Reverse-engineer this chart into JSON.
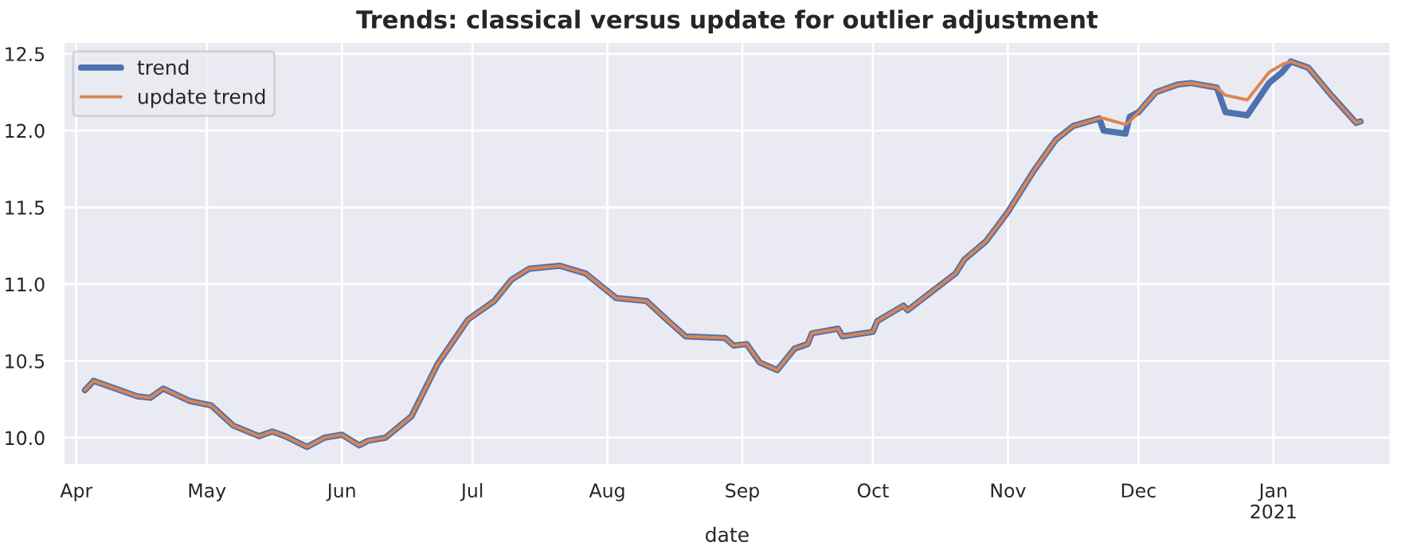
{
  "chart_data": {
    "type": "line",
    "title": "Trends: classical versus update for outlier adjustment",
    "xlabel": "date",
    "x": [
      "2020-04-03",
      "2020-04-05",
      "2020-04-07",
      "2020-04-11",
      "2020-04-15",
      "2020-04-18",
      "2020-04-21",
      "2020-04-27",
      "2020-05-02",
      "2020-05-07",
      "2020-05-13",
      "2020-05-16",
      "2020-05-19",
      "2020-05-24",
      "2020-05-28",
      "2020-06-01",
      "2020-06-05",
      "2020-06-07",
      "2020-06-11",
      "2020-06-17",
      "2020-06-23",
      "2020-06-30",
      "2020-07-06",
      "2020-07-10",
      "2020-07-14",
      "2020-07-21",
      "2020-07-27",
      "2020-08-03",
      "2020-08-10",
      "2020-08-15",
      "2020-08-19",
      "2020-08-28",
      "2020-08-30",
      "2020-09-02",
      "2020-09-05",
      "2020-09-09",
      "2020-09-13",
      "2020-09-16",
      "2020-09-17",
      "2020-09-23",
      "2020-09-24",
      "2020-10-01",
      "2020-10-02",
      "2020-10-08",
      "2020-10-09",
      "2020-10-14",
      "2020-10-20",
      "2020-10-22",
      "2020-10-27",
      "2020-11-01",
      "2020-11-07",
      "2020-11-12",
      "2020-11-16",
      "2020-11-22",
      "2020-11-23",
      "2020-11-28",
      "2020-11-29",
      "2020-12-01",
      "2020-12-05",
      "2020-12-10",
      "2020-12-13",
      "2020-12-19",
      "2020-12-21",
      "2020-12-26",
      "2020-12-31",
      "2021-01-03",
      "2021-01-05",
      "2021-01-09",
      "2021-01-14",
      "2021-01-20",
      "2021-01-21"
    ],
    "series": [
      {
        "name": "trend",
        "color": "#4c72b0",
        "values": [
          10.31,
          10.37,
          10.35,
          10.31,
          10.27,
          10.26,
          10.32,
          10.24,
          10.21,
          10.08,
          10.01,
          10.04,
          10.01,
          9.94,
          10.0,
          10.02,
          9.95,
          9.98,
          10.0,
          10.14,
          10.48,
          10.77,
          10.89,
          11.03,
          11.1,
          11.12,
          11.07,
          10.91,
          10.89,
          10.76,
          10.66,
          10.65,
          10.6,
          10.61,
          10.49,
          10.44,
          10.58,
          10.61,
          10.68,
          10.71,
          10.66,
          10.69,
          10.76,
          10.86,
          10.83,
          10.94,
          11.07,
          11.16,
          11.28,
          11.47,
          11.74,
          11.94,
          12.03,
          12.08,
          12.0,
          11.98,
          12.09,
          12.12,
          12.25,
          12.3,
          12.31,
          12.28,
          12.12,
          12.1,
          12.31,
          12.38,
          12.45,
          12.41,
          12.24,
          12.05,
          12.06
        ]
      },
      {
        "name": "update trend",
        "color": "#dd8452",
        "values": [
          10.31,
          10.37,
          10.35,
          10.31,
          10.27,
          10.26,
          10.32,
          10.24,
          10.21,
          10.08,
          10.01,
          10.04,
          10.01,
          9.94,
          10.0,
          10.02,
          9.95,
          9.98,
          10.0,
          10.14,
          10.48,
          10.77,
          10.89,
          11.03,
          11.1,
          11.12,
          11.07,
          10.91,
          10.89,
          10.76,
          10.66,
          10.65,
          10.6,
          10.61,
          10.49,
          10.44,
          10.58,
          10.61,
          10.68,
          10.71,
          10.66,
          10.69,
          10.76,
          10.86,
          10.83,
          10.94,
          11.07,
          11.16,
          11.28,
          11.47,
          11.74,
          11.94,
          12.03,
          12.08,
          12.08,
          12.04,
          12.06,
          12.12,
          12.25,
          12.3,
          12.31,
          12.28,
          12.23,
          12.2,
          12.38,
          12.43,
          12.45,
          12.41,
          12.24,
          12.05,
          12.06
        ]
      }
    ],
    "xlim": [
      "2020-03-29",
      "2021-01-28"
    ],
    "xticks": [
      {
        "value": "2020-04-01",
        "label": "Apr"
      },
      {
        "value": "2020-05-01",
        "label": "May"
      },
      {
        "value": "2020-06-01",
        "label": "Jun"
      },
      {
        "value": "2020-07-01",
        "label": "Jul"
      },
      {
        "value": "2020-08-01",
        "label": "Aug"
      },
      {
        "value": "2020-09-01",
        "label": "Sep"
      },
      {
        "value": "2020-10-01",
        "label": "Oct"
      },
      {
        "value": "2020-11-01",
        "label": "Nov"
      },
      {
        "value": "2020-12-01",
        "label": "Dec"
      },
      {
        "value": "2021-01-01",
        "label": "Jan\n2021"
      }
    ],
    "ylim": [
      9.82,
      12.58
    ],
    "yticks": [
      {
        "value": 10.0,
        "label": "10.0"
      },
      {
        "value": 10.5,
        "label": "10.5"
      },
      {
        "value": 11.0,
        "label": "11.0"
      },
      {
        "value": 11.5,
        "label": "11.5"
      },
      {
        "value": 12.0,
        "label": "12.0"
      },
      {
        "value": 12.5,
        "label": "12.5"
      }
    ],
    "grid": true,
    "legend": "top left",
    "marker": "none",
    "line_style": "solid"
  }
}
